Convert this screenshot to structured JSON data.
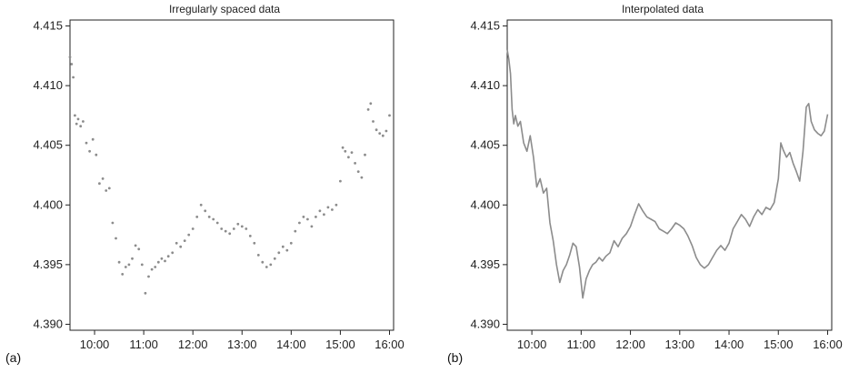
{
  "chart_data": [
    {
      "panel_tag": "(a)",
      "type": "scatter",
      "title": "Irregularly spaced data",
      "xlabel": "",
      "ylabel": "",
      "x_tick_labels": [
        "10:00",
        "11:00",
        "12:00",
        "13:00",
        "14:00",
        "15:00",
        "16:00"
      ],
      "y_tick_labels": [
        "4.390",
        "4.395",
        "4.400",
        "4.405",
        "4.410",
        "4.415"
      ],
      "xlim": [
        "09:30",
        "16:05"
      ],
      "ylim": [
        4.3895,
        4.4155
      ],
      "grid": false,
      "series": [
        {
          "color": "#8c8c8c",
          "points": [
            [
              "09:30",
              4.4124
            ],
            [
              "09:32",
              4.4118
            ],
            [
              "09:34",
              4.4107
            ],
            [
              "09:36",
              4.4075
            ],
            [
              "09:38",
              4.4068
            ],
            [
              "09:40",
              4.4072
            ],
            [
              "09:43",
              4.4066
            ],
            [
              "09:46",
              4.407
            ],
            [
              "09:50",
              4.4052
            ],
            [
              "09:54",
              4.4045
            ],
            [
              "09:58",
              4.4055
            ],
            [
              "10:02",
              4.4042
            ],
            [
              "10:06",
              4.4018
            ],
            [
              "10:10",
              4.4022
            ],
            [
              "10:14",
              4.4012
            ],
            [
              "10:18",
              4.4014
            ],
            [
              "10:22",
              4.3985
            ],
            [
              "10:26",
              4.3972
            ],
            [
              "10:30",
              4.3952
            ],
            [
              "10:34",
              4.3942
            ],
            [
              "10:38",
              4.3948
            ],
            [
              "10:42",
              4.395
            ],
            [
              "10:46",
              4.3955
            ],
            [
              "10:50",
              4.3966
            ],
            [
              "10:54",
              4.3963
            ],
            [
              "10:58",
              4.395
            ],
            [
              "11:02",
              4.3926
            ],
            [
              "11:06",
              4.394
            ],
            [
              "11:10",
              4.3946
            ],
            [
              "11:14",
              4.3948
            ],
            [
              "11:18",
              4.3952
            ],
            [
              "11:22",
              4.3955
            ],
            [
              "11:26",
              4.3953
            ],
            [
              "11:30",
              4.3957
            ],
            [
              "11:35",
              4.396
            ],
            [
              "11:40",
              4.3968
            ],
            [
              "11:45",
              4.3965
            ],
            [
              "11:50",
              4.397
            ],
            [
              "11:55",
              4.3975
            ],
            [
              "12:00",
              4.398
            ],
            [
              "12:05",
              4.399
            ],
            [
              "12:10",
              4.4
            ],
            [
              "12:15",
              4.3995
            ],
            [
              "12:20",
              4.399
            ],
            [
              "12:25",
              4.3988
            ],
            [
              "12:30",
              4.3985
            ],
            [
              "12:35",
              4.398
            ],
            [
              "12:40",
              4.3978
            ],
            [
              "12:45",
              4.3976
            ],
            [
              "12:50",
              4.398
            ],
            [
              "12:55",
              4.3984
            ],
            [
              "13:00",
              4.3982
            ],
            [
              "13:05",
              4.398
            ],
            [
              "13:10",
              4.3974
            ],
            [
              "13:15",
              4.3968
            ],
            [
              "13:20",
              4.3958
            ],
            [
              "13:25",
              4.3952
            ],
            [
              "13:30",
              4.3948
            ],
            [
              "13:35",
              4.395
            ],
            [
              "13:40",
              4.3955
            ],
            [
              "13:45",
              4.396
            ],
            [
              "13:50",
              4.3965
            ],
            [
              "13:55",
              4.3962
            ],
            [
              "14:00",
              4.3968
            ],
            [
              "14:05",
              4.3978
            ],
            [
              "14:10",
              4.3985
            ],
            [
              "14:15",
              4.399
            ],
            [
              "14:20",
              4.3988
            ],
            [
              "14:25",
              4.3982
            ],
            [
              "14:30",
              4.399
            ],
            [
              "14:35",
              4.3995
            ],
            [
              "14:40",
              4.3992
            ],
            [
              "14:45",
              4.3998
            ],
            [
              "14:50",
              4.3996
            ],
            [
              "14:55",
              4.4
            ],
            [
              "15:00",
              4.402
            ],
            [
              "15:03",
              4.4048
            ],
            [
              "15:06",
              4.4045
            ],
            [
              "15:10",
              4.404
            ],
            [
              "15:14",
              4.4044
            ],
            [
              "15:18",
              4.4035
            ],
            [
              "15:22",
              4.4028
            ],
            [
              "15:26",
              4.4023
            ],
            [
              "15:30",
              4.4042
            ],
            [
              "15:34",
              4.408
            ],
            [
              "15:37",
              4.4085
            ],
            [
              "15:40",
              4.407
            ],
            [
              "15:44",
              4.4063
            ],
            [
              "15:48",
              4.406
            ],
            [
              "15:52",
              4.4058
            ],
            [
              "15:56",
              4.4062
            ],
            [
              "16:00",
              4.4075
            ]
          ]
        }
      ]
    },
    {
      "panel_tag": "(b)",
      "type": "line",
      "title": "Interpolated data",
      "xlabel": "",
      "ylabel": "",
      "x_tick_labels": [
        "10:00",
        "11:00",
        "12:00",
        "13:00",
        "14:00",
        "15:00",
        "16:00"
      ],
      "y_tick_labels": [
        "4.390",
        "4.395",
        "4.400",
        "4.405",
        "4.410",
        "4.415"
      ],
      "xlim": [
        "09:30",
        "16:05"
      ],
      "ylim": [
        4.3895,
        4.4155
      ],
      "grid": false,
      "series": [
        {
          "color": "#8c8c8c",
          "points": [
            [
              "09:30",
              4.413
            ],
            [
              "09:32",
              4.4122
            ],
            [
              "09:34",
              4.411
            ],
            [
              "09:36",
              4.408
            ],
            [
              "09:38",
              4.4068
            ],
            [
              "09:40",
              4.4075
            ],
            [
              "09:43",
              4.4066
            ],
            [
              "09:46",
              4.407
            ],
            [
              "09:50",
              4.4052
            ],
            [
              "09:54",
              4.4045
            ],
            [
              "09:58",
              4.4058
            ],
            [
              "10:02",
              4.404
            ],
            [
              "10:06",
              4.4015
            ],
            [
              "10:10",
              4.4022
            ],
            [
              "10:14",
              4.401
            ],
            [
              "10:18",
              4.4014
            ],
            [
              "10:22",
              4.3985
            ],
            [
              "10:26",
              4.397
            ],
            [
              "10:30",
              4.395
            ],
            [
              "10:34",
              4.3935
            ],
            [
              "10:38",
              4.3945
            ],
            [
              "10:42",
              4.395
            ],
            [
              "10:46",
              4.3958
            ],
            [
              "10:50",
              4.3968
            ],
            [
              "10:54",
              4.3965
            ],
            [
              "10:58",
              4.3948
            ],
            [
              "11:02",
              4.3922
            ],
            [
              "11:06",
              4.3938
            ],
            [
              "11:10",
              4.3945
            ],
            [
              "11:14",
              4.395
            ],
            [
              "11:18",
              4.3952
            ],
            [
              "11:22",
              4.3956
            ],
            [
              "11:26",
              4.3953
            ],
            [
              "11:30",
              4.3957
            ],
            [
              "11:35",
              4.396
            ],
            [
              "11:40",
              4.397
            ],
            [
              "11:45",
              4.3965
            ],
            [
              "11:50",
              4.3972
            ],
            [
              "11:55",
              4.3976
            ],
            [
              "12:00",
              4.3982
            ],
            [
              "12:05",
              4.3992
            ],
            [
              "12:10",
              4.4001
            ],
            [
              "12:15",
              4.3995
            ],
            [
              "12:20",
              4.399
            ],
            [
              "12:25",
              4.3988
            ],
            [
              "12:30",
              4.3986
            ],
            [
              "12:35",
              4.398
            ],
            [
              "12:40",
              4.3978
            ],
            [
              "12:45",
              4.3976
            ],
            [
              "12:50",
              4.398
            ],
            [
              "12:55",
              4.3985
            ],
            [
              "13:00",
              4.3983
            ],
            [
              "13:05",
              4.398
            ],
            [
              "13:10",
              4.3974
            ],
            [
              "13:15",
              4.3966
            ],
            [
              "13:20",
              4.3956
            ],
            [
              "13:25",
              4.395
            ],
            [
              "13:30",
              4.3947
            ],
            [
              "13:35",
              4.395
            ],
            [
              "13:40",
              4.3956
            ],
            [
              "13:45",
              4.3962
            ],
            [
              "13:50",
              4.3966
            ],
            [
              "13:55",
              4.3962
            ],
            [
              "14:00",
              4.3968
            ],
            [
              "14:05",
              4.398
            ],
            [
              "14:10",
              4.3986
            ],
            [
              "14:15",
              4.3992
            ],
            [
              "14:20",
              4.3988
            ],
            [
              "14:25",
              4.3982
            ],
            [
              "14:30",
              4.399
            ],
            [
              "14:35",
              4.3996
            ],
            [
              "14:40",
              4.3992
            ],
            [
              "14:45",
              4.3998
            ],
            [
              "14:50",
              4.3996
            ],
            [
              "14:55",
              4.4002
            ],
            [
              "15:00",
              4.4022
            ],
            [
              "15:03",
              4.4052
            ],
            [
              "15:06",
              4.4046
            ],
            [
              "15:10",
              4.404
            ],
            [
              "15:14",
              4.4044
            ],
            [
              "15:18",
              4.4035
            ],
            [
              "15:22",
              4.4028
            ],
            [
              "15:26",
              4.402
            ],
            [
              "15:30",
              4.4045
            ],
            [
              "15:34",
              4.4082
            ],
            [
              "15:37",
              4.4085
            ],
            [
              "15:40",
              4.407
            ],
            [
              "15:44",
              4.4063
            ],
            [
              "15:48",
              4.406
            ],
            [
              "15:52",
              4.4058
            ],
            [
              "15:56",
              4.4062
            ],
            [
              "16:00",
              4.4076
            ]
          ]
        }
      ]
    }
  ]
}
